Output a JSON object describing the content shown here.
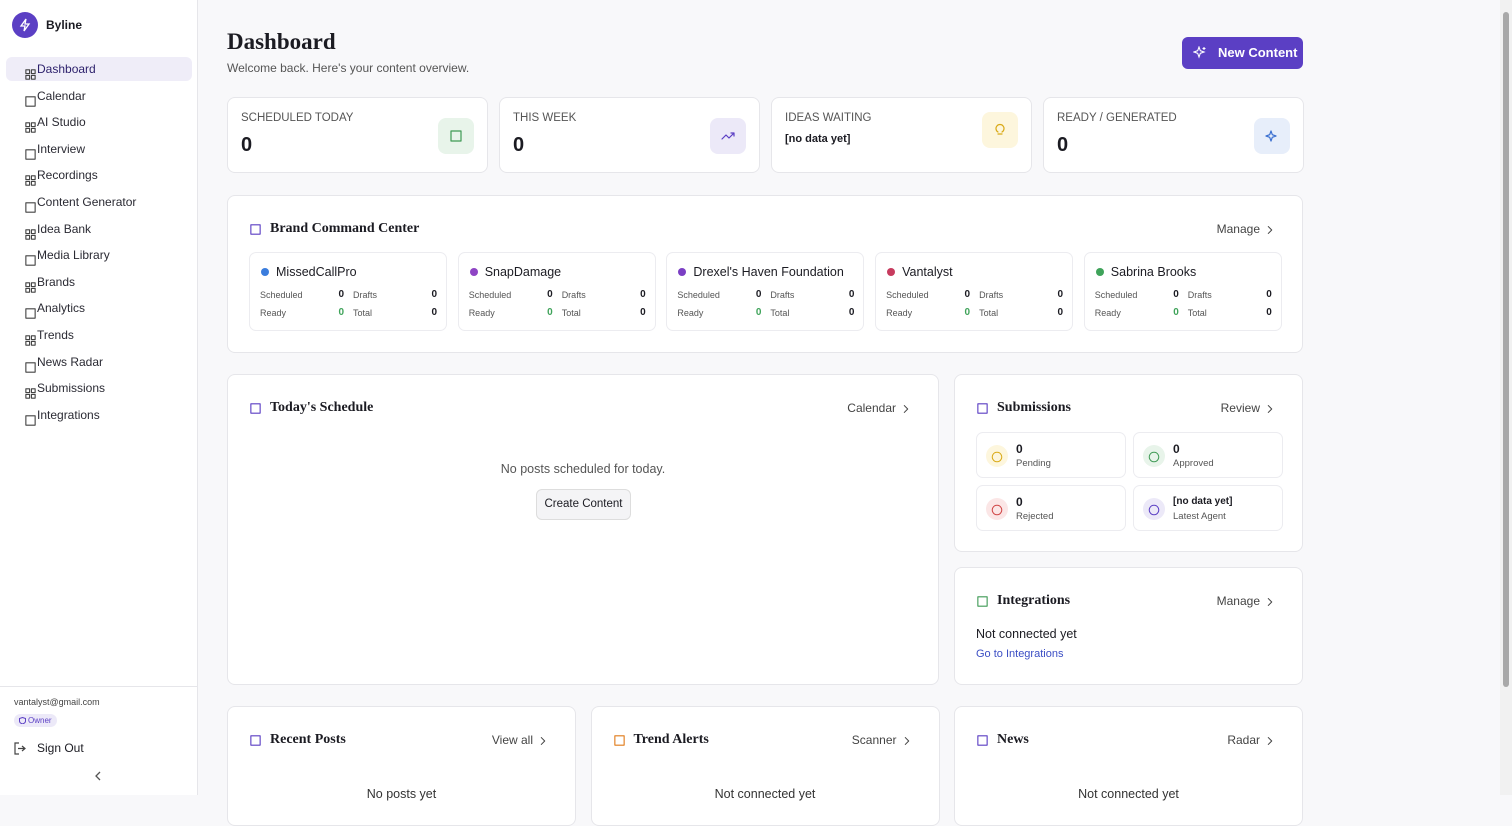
{
  "sidebar": {
    "app_name": "Byline",
    "nav": [
      "Dashboard",
      "Calendar",
      "AI Studio",
      "Interview",
      "Recordings",
      "Content Generator",
      "Idea Bank",
      "Media Library",
      "Brands",
      "Analytics",
      "Trends",
      "News Radar",
      "Submissions",
      "Integrations"
    ],
    "active": "Dashboard",
    "user_email": "vantalyst@gmail.com",
    "role": "Owner",
    "sign_out": "Sign Out"
  },
  "header": {
    "title": "Dashboard",
    "subtitle": "Welcome back. Here's your content overview.",
    "button": "New Content"
  },
  "stats": [
    {
      "label": "SCHEDULED TODAY",
      "value": 0,
      "color": "#e8f4ea",
      "icon_color": "#3f9a55"
    },
    {
      "label": "THIS WEEK",
      "value": 0,
      "color": "#ece9f8",
      "icon_color": "#5b3fc4"
    },
    {
      "label": "IDEAS WAITING",
      "value": "[no data yet]",
      "color": "#fdf6dd",
      "icon_color": "#d9a916"
    },
    {
      "label": "READY / GENERATED",
      "value": 0,
      "color": "#e7eefa",
      "icon_color": "#3a6fd0"
    }
  ],
  "brand_center": {
    "title": "Brand Command Center",
    "link": "Manage",
    "field_labels": [
      "Scheduled",
      "Drafts",
      "Ready",
      "Total"
    ],
    "brands": [
      {
        "name": "MissedCallPro",
        "color": "#3b7ddd",
        "scheduled": 0,
        "drafts": 0,
        "ready": 0,
        "total": 0
      },
      {
        "name": "SnapDamage",
        "color": "#8e44c4",
        "scheduled": 0,
        "drafts": 0,
        "ready": 0,
        "total": 0
      },
      {
        "name": "Drexel's Haven Foundation",
        "color": "#7b3fc4",
        "scheduled": 0,
        "drafts": 0,
        "ready": 0,
        "total": 0
      },
      {
        "name": "Vantalyst",
        "color": "#c73b5e",
        "scheduled": 0,
        "drafts": 0,
        "ready": 0,
        "total": 0
      },
      {
        "name": "Sabrina Brooks",
        "color": "#3fa35a",
        "scheduled": 0,
        "drafts": 0,
        "ready": 0,
        "total": 0
      }
    ]
  },
  "schedule": {
    "title": "Today's Schedule",
    "link": "Calendar",
    "empty": "No posts scheduled for today.",
    "button": "Create Content"
  },
  "submissions": {
    "title": "Submissions",
    "link": "Review",
    "items": [
      {
        "value": 0,
        "label": "Pending",
        "color": "#fdf6dd",
        "icon_color": "#d9a916"
      },
      {
        "value": 0,
        "label": "Approved",
        "color": "#e8f4ea",
        "icon_color": "#3f9a55"
      },
      {
        "value": 0,
        "label": "Rejected",
        "color": "#fbe6e6",
        "icon_color": "#d04545"
      },
      {
        "value": "[no data yet]",
        "label": "Latest Agent",
        "color": "#ece9f8",
        "icon_color": "#5b3fc4"
      }
    ]
  },
  "integrations": {
    "title": "Integrations",
    "link": "Manage",
    "status": "Not connected yet",
    "action": "Go to Integrations"
  },
  "bottom": [
    {
      "title": "Recent Posts",
      "link": "View all",
      "empty": "No posts yet"
    },
    {
      "title": "Trend Alerts",
      "link": "Scanner",
      "empty": "Not connected yet"
    },
    {
      "title": "News",
      "link": "Radar",
      "empty": "Not connected yet"
    }
  ]
}
